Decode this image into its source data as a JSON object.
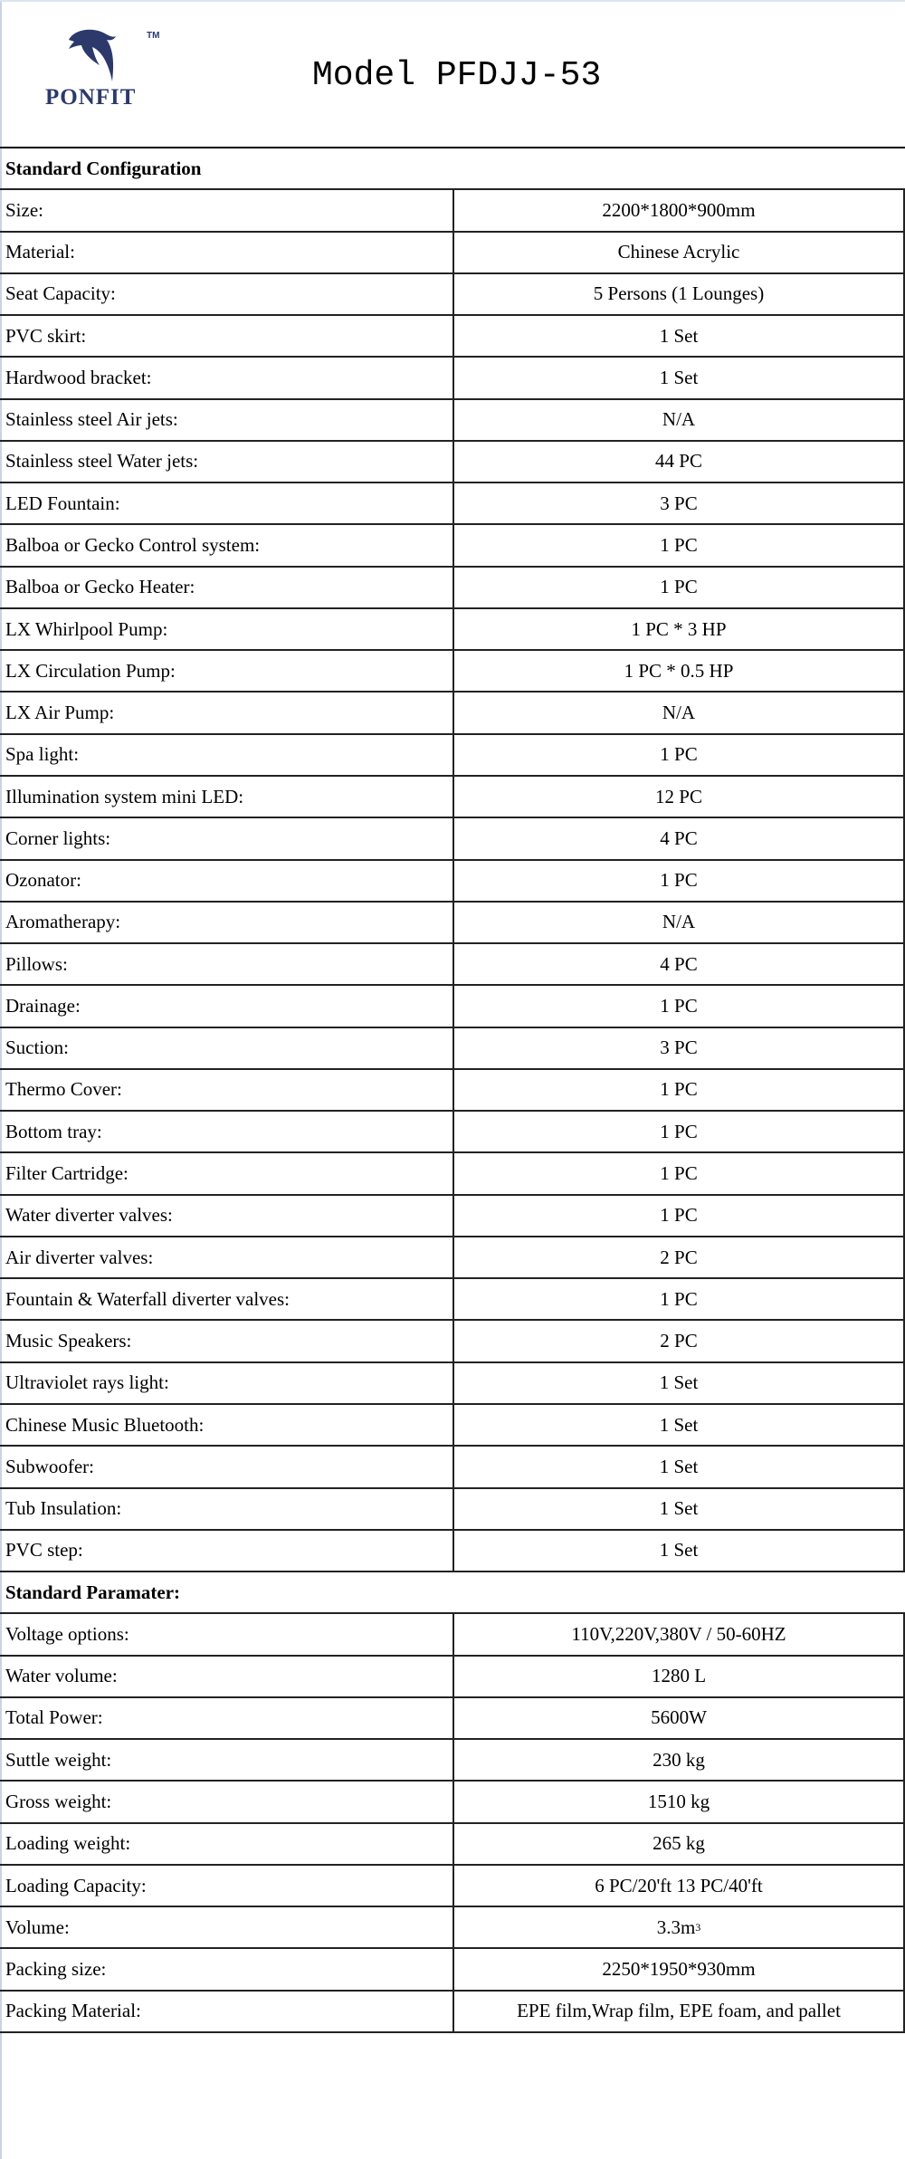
{
  "header": {
    "brand": "PONFIT",
    "trademark": "TM",
    "title": "Model PFDJJ-53",
    "brand_color": "#2b3a6b"
  },
  "sections": [
    {
      "title": "Standard Configuration",
      "rows": [
        {
          "label": "Size:",
          "value": "2200*1800*900mm"
        },
        {
          "label": "Material:",
          "value": "Chinese Acrylic"
        },
        {
          "label": "Seat Capacity:",
          "value": "5  Persons (1 Lounges)"
        },
        {
          "label": "PVC skirt:",
          "value": "1 Set"
        },
        {
          "label": "Hardwood bracket:",
          "value": "1 Set"
        },
        {
          "label": "Stainless steel Air jets:",
          "value": "N/A"
        },
        {
          "label": "Stainless steel Water jets:",
          "value": "44 PC"
        },
        {
          "label": "LED Fountain:",
          "value": "3 PC"
        },
        {
          "label": "Balboa or Gecko Control system:",
          "value": "1 PC"
        },
        {
          "label": "Balboa or Gecko Heater:",
          "value": "1 PC"
        },
        {
          "label": "LX Whirlpool Pump:",
          "value": "1 PC * 3 HP"
        },
        {
          "label": "LX Circulation Pump:",
          "value": "1 PC * 0.5 HP"
        },
        {
          "label": "LX Air Pump:",
          "value": "N/A"
        },
        {
          "label": "Spa light:",
          "value": "1 PC"
        },
        {
          "label": "Illumination system mini LED:",
          "value": "12 PC"
        },
        {
          "label": "Corner lights:",
          "value": "4 PC"
        },
        {
          "label": "Ozonator:",
          "value": "1 PC"
        },
        {
          "label": "Aromatherapy:",
          "value": "N/A"
        },
        {
          "label": "Pillows:",
          "value": "4 PC"
        },
        {
          "label": "Drainage:",
          "value": "1 PC"
        },
        {
          "label": "Suction:",
          "value": "3 PC"
        },
        {
          "label": "Thermo Cover:",
          "value": "1 PC"
        },
        {
          "label": "Bottom tray:",
          "value": "1 PC"
        },
        {
          "label": "Filter Cartridge:",
          "value": "1 PC"
        },
        {
          "label": "Water diverter valves:",
          "value": "1 PC"
        },
        {
          "label": "Air diverter valves:",
          "value": "2 PC"
        },
        {
          "label": "Fountain & Waterfall diverter valves:",
          "value": "1 PC"
        },
        {
          "label": "Music Speakers:",
          "value": "2 PC"
        },
        {
          "label": "Ultraviolet rays light:",
          "value": "1 Set"
        },
        {
          "label": "Chinese Music Bluetooth:",
          "value": "1 Set"
        },
        {
          "label": "Subwoofer:",
          "value": "1 Set"
        },
        {
          "label": "Tub Insulation:",
          "value": "1 Set"
        },
        {
          "label": "PVC step:",
          "value": "1 Set"
        }
      ]
    },
    {
      "title": "Standard Paramater:",
      "rows": [
        {
          "label": "Voltage options:",
          "value": "110V,220V,380V / 50-60HZ"
        },
        {
          "label": "Water volume:",
          "value": "1280 L"
        },
        {
          "label": "Total Power:",
          "value": "5600W"
        },
        {
          "label": "Suttle weight:",
          "value": "230 kg"
        },
        {
          "label": "Gross weight:",
          "value": "1510 kg"
        },
        {
          "label": "Loading weight:",
          "value": "265 kg"
        },
        {
          "label": "Loading Capacity:",
          "value": "6 PC/20'ft   13 PC/40'ft"
        },
        {
          "label": "Volume:",
          "value": "3.3m",
          "sup": "3"
        },
        {
          "label": "Packing size:",
          "value": "2250*1950*930mm"
        },
        {
          "label": "Packing Material:",
          "value": "EPE film,Wrap film, EPE foam, and pallet"
        }
      ]
    }
  ]
}
